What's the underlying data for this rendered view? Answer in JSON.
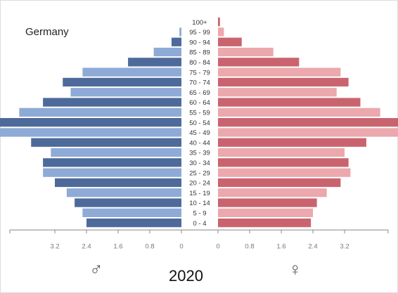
{
  "chart_data": {
    "type": "bar",
    "title": "Germany",
    "year_label": "2020",
    "male_symbol": "♂",
    "female_symbol": "♀",
    "age_groups": [
      "100+",
      "95 - 99",
      "90 - 94",
      "85 - 89",
      "80 - 84",
      "75 - 79",
      "70 - 74",
      "65 - 69",
      "60 - 64",
      "55 - 59",
      "50 - 54",
      "45 - 49",
      "40 - 44",
      "35 - 39",
      "30 - 34",
      "25 - 29",
      "20 - 24",
      "15 - 19",
      "10 - 14",
      "5 - 9",
      "0 - 4"
    ],
    "series": [
      {
        "name": "Male",
        "values": [
          0.0,
          0.05,
          0.25,
          0.7,
          1.35,
          2.5,
          3.0,
          2.8,
          3.5,
          4.1,
          4.8,
          4.9,
          3.8,
          3.3,
          3.5,
          3.5,
          3.2,
          2.9,
          2.7,
          2.5,
          2.4
        ]
      },
      {
        "name": "Female",
        "values": [
          0.05,
          0.15,
          0.6,
          1.4,
          2.05,
          3.1,
          3.3,
          3.0,
          3.6,
          4.1,
          4.8,
          4.8,
          3.75,
          3.2,
          3.3,
          3.35,
          3.1,
          2.75,
          2.5,
          2.4,
          2.35
        ]
      }
    ],
    "x_ticks": [
      "3.2",
      "2.4",
      "1.6",
      "0.8",
      "0",
      "0",
      "0.8",
      "1.6",
      "2.4",
      "3.2"
    ],
    "x_max": 5.0,
    "colors": {
      "male_dark": "#4e6a9a",
      "male_light": "#8eaad6",
      "female_dark": "#c9646e",
      "female_light": "#eba8ad"
    }
  }
}
